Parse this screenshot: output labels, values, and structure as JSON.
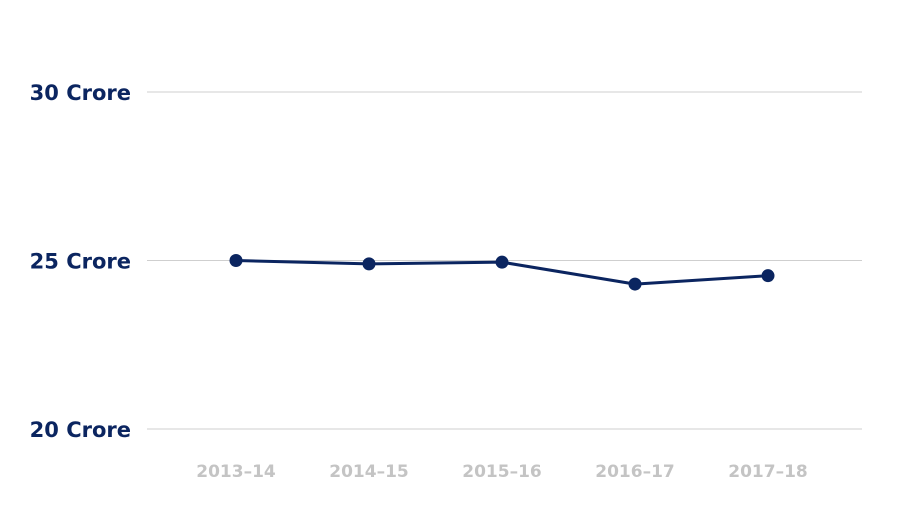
{
  "chart_data": {
    "type": "line",
    "categories": [
      "2013–14",
      "2014–15",
      "2015–16",
      "2016–17",
      "2017–18"
    ],
    "series": [
      {
        "values": [
          25.0,
          24.9,
          24.95,
          24.3,
          24.55
        ]
      }
    ],
    "ylim": [
      20,
      30
    ],
    "yticks": [
      {
        "value": 30,
        "label": "30 Crore"
      },
      {
        "value": 25,
        "label": "25 Crore"
      },
      {
        "value": 20,
        "label": "20 Crore"
      }
    ],
    "grid": true,
    "colors": {
      "line": "#0b2560",
      "ytick_text": "#0b2560",
      "xtick_text": "#c4c4c4",
      "grid": "#cfcfcf"
    }
  }
}
